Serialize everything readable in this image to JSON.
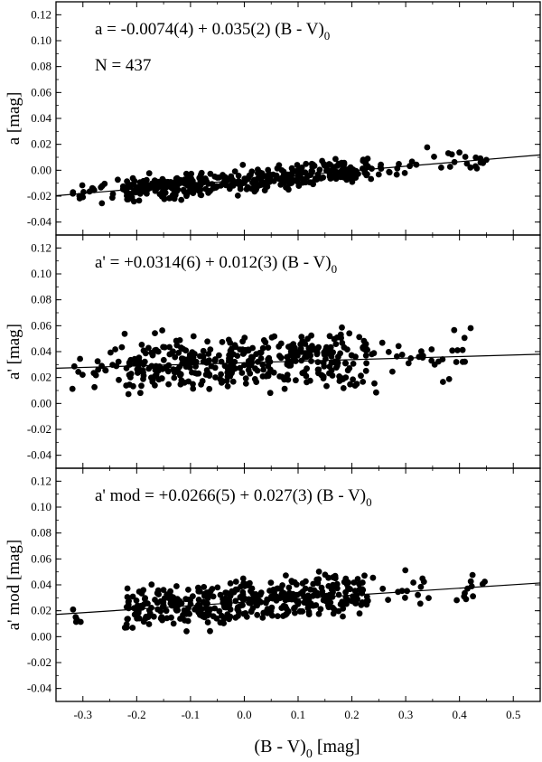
{
  "figure": {
    "x_axis_label_main": "(B - V)",
    "x_axis_label_sub": "0",
    "x_axis_label_unit": " [mag]"
  },
  "chart_data": [
    {
      "type": "scatter",
      "panel": "top",
      "ylabel": "a [mag]",
      "xlim": [
        -0.35,
        0.55
      ],
      "ylim": [
        -0.05,
        0.13
      ],
      "grid": false,
      "yticks": [
        "-0.04",
        "-0.02",
        "0.00",
        "0.02",
        "0.04",
        "0.06",
        "0.08",
        "0.10",
        "0.12"
      ],
      "xticks": [],
      "annotation": {
        "main": "a = -0.0074(4) + 0.035(2) (B - V)",
        "sub": "0"
      },
      "count_label": "N = 437",
      "fit": {
        "intercept": -0.0074,
        "slope": 0.035
      },
      "scatter_spread": 0.006,
      "n_points": 437
    },
    {
      "type": "scatter",
      "panel": "middle",
      "ylabel": "a' [mag]",
      "xlim": [
        -0.35,
        0.55
      ],
      "ylim": [
        -0.05,
        0.13
      ],
      "grid": false,
      "yticks": [
        "-0.04",
        "-0.02",
        "0.00",
        "0.02",
        "0.04",
        "0.06",
        "0.08",
        "0.10",
        "0.12"
      ],
      "xticks": [],
      "annotation": {
        "main": "a' = +0.0314(6) + 0.012(3) (B - V)",
        "sub": "0"
      },
      "fit": {
        "intercept": 0.0314,
        "slope": 0.012
      },
      "scatter_spread": 0.012,
      "n_points": 437
    },
    {
      "type": "scatter",
      "panel": "bottom",
      "ylabel": "a' mod [mag]",
      "xlim": [
        -0.35,
        0.55
      ],
      "ylim": [
        -0.05,
        0.13
      ],
      "grid": false,
      "yticks": [
        "-0.04",
        "-0.02",
        "0.00",
        "0.02",
        "0.04",
        "0.06",
        "0.08",
        "0.10",
        "0.12"
      ],
      "xticks": [
        "-0.3",
        "-0.2",
        "-0.1",
        "0.0",
        "0.1",
        "0.2",
        "0.3",
        "0.4",
        "0.5"
      ],
      "annotation": {
        "main": "a' mod = +0.0266(5) + 0.027(3) (B - V)",
        "sub": "0"
      },
      "fit": {
        "intercept": 0.0266,
        "slope": 0.027
      },
      "scatter_spread": 0.01,
      "n_points": 437
    }
  ]
}
